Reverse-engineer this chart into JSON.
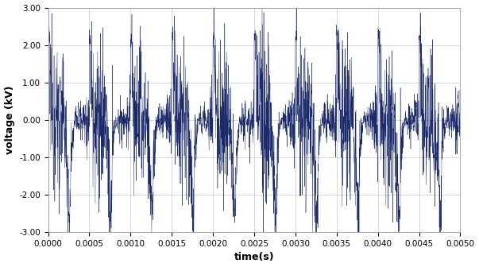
{
  "title": "",
  "xlabel": "time(s)",
  "ylabel": "voltage (kV)",
  "xlim": [
    0.0,
    0.005
  ],
  "ylim": [
    -3.0,
    3.0
  ],
  "yticks": [
    -3.0,
    -2.0,
    -1.0,
    0.0,
    1.0,
    2.0,
    3.0
  ],
  "xticks": [
    0.0,
    0.0005,
    0.001,
    0.0015,
    0.002,
    0.0025,
    0.003,
    0.0035,
    0.004,
    0.0045,
    0.005
  ],
  "line_color": "#1B2A6B",
  "background_color": "#ffffff",
  "grid_color": "#b0b8c8",
  "arc_freq": 2000,
  "sample_rate": 500000,
  "duration": 0.005,
  "linewidth": 0.3
}
